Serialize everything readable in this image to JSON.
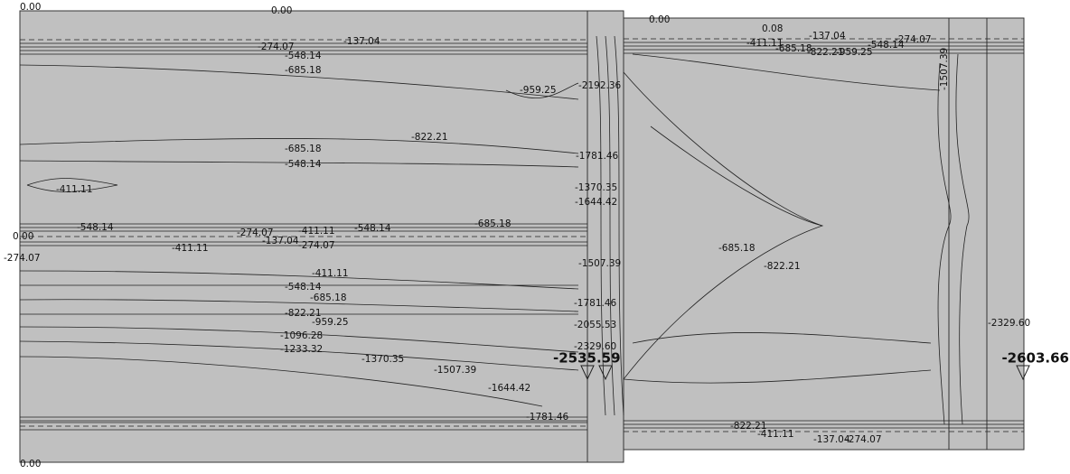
{
  "contour_labels": [
    "0.00",
    "0.00",
    "0.00",
    "0.08",
    "0.00",
    "0.00",
    "-274.07",
    "-274.07",
    "-137.04",
    "-548.14",
    "-685.18",
    "-959.25",
    "-2192.36",
    "-822.21",
    "-685.18",
    "-548.14",
    "-411.11",
    "-1781.46",
    "-1370.35",
    "-1644.42",
    "-685.18",
    "-548.14",
    "-274.07",
    "-137.04",
    "-411.11",
    "-548.14",
    "-274.07",
    "-411.11",
    "-685.18",
    "-822.21",
    "-1507.39",
    "-411.11",
    "-548.14",
    "-685.18",
    "-822.21",
    "-959.25",
    "-1096.28",
    "-1233.32",
    "-1370.35",
    "-1507.39",
    "-1644.42",
    "-1781.46",
    "-2055.53",
    "-2329.60",
    "-2329.60",
    "-822.21",
    "-411.11",
    "-137.04",
    "-274.07",
    "-1781.46",
    "-137.04",
    "-411.11",
    "-685.18",
    "-822.21",
    "-959.25",
    "-548.14",
    "-274.07",
    "-1507.39"
  ],
  "peak_labels": [
    "-2535.59",
    "-2603.66"
  ]
}
